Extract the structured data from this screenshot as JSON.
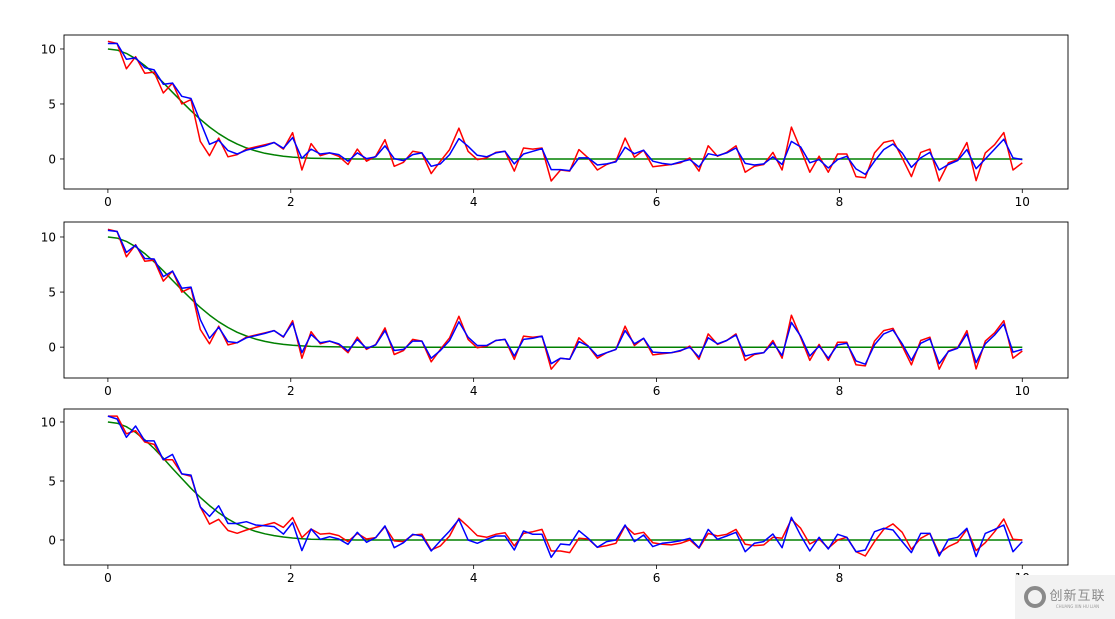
{
  "watermark": {
    "text_cn": "创新互联",
    "text_en": "CHUANG XIN HU LIAN"
  },
  "colors": {
    "red": "#ff0000",
    "blue": "#0000ff",
    "green": "#008000"
  },
  "chart_data": [
    {
      "type": "line",
      "x_range": {
        "start": 0,
        "end": 10,
        "count": 100
      },
      "xlim": [
        -0.48,
        10.5
      ],
      "ylim": [
        -2.73,
        11.27
      ],
      "xticks": [
        0,
        2,
        4,
        6,
        8,
        10
      ],
      "yticks": [
        0,
        5,
        10
      ],
      "grid": false,
      "series": [
        {
          "color": "#008000",
          "values": [
            10,
            9.9,
            9.6,
            9.12,
            8.49,
            7.75,
            6.93,
            6.06,
            5.21,
            4.38,
            3.61,
            2.91,
            2.3,
            1.78,
            1.35,
            1.01,
            0.73,
            0.52,
            0.37,
            0.25,
            0.17,
            0.11,
            0.07,
            0.05,
            0.03,
            0.02,
            0.01,
            0,
            0,
            0,
            0,
            0,
            0,
            0,
            0,
            0,
            0,
            0,
            0,
            0,
            0,
            0,
            0,
            0,
            0,
            0,
            0,
            0,
            0,
            0,
            0,
            0,
            0,
            0,
            0,
            0,
            0,
            0,
            0,
            0,
            0,
            0,
            0,
            0,
            0,
            0,
            0,
            0,
            0,
            0,
            0,
            0,
            0,
            0,
            0,
            0,
            0,
            0,
            0,
            0,
            0,
            0,
            0,
            0,
            0,
            0,
            0,
            0,
            0,
            0,
            0,
            0,
            0,
            0,
            0,
            0,
            0,
            0,
            0,
            0
          ]
        },
        {
          "color": "#ff0000",
          "values": [
            10.7,
            10.5,
            8.2,
            9.3,
            7.8,
            7.9,
            6.0,
            6.9,
            5.0,
            5.4,
            1.6,
            0.3,
            1.9,
            0.2,
            0.4,
            0.9,
            1.1,
            1.3,
            1.5,
            0.9,
            2.4,
            -1.0,
            1.4,
            0.3,
            0.55,
            0.24,
            -0.5,
            0.9,
            -0.2,
            0.24,
            1.75,
            -0.67,
            -0.3,
            0.7,
            0.55,
            -1.33,
            -0.2,
            0.85,
            2.8,
            0.7,
            -0.06,
            0.1,
            0.6,
            0.7,
            -1.1,
            1.0,
            0.9,
            1.0,
            -2.0,
            -1.0,
            -1.1,
            0.85,
            0.1,
            -1.0,
            -0.5,
            -0.2,
            1.9,
            0.15,
            0.8,
            -0.7,
            -0.6,
            -0.5,
            -0.35,
            0.1,
            -1.1,
            1.2,
            0.25,
            0.6,
            1.2,
            -1.2,
            -0.67,
            -0.5,
            0.6,
            -1.0,
            2.9,
            0.9,
            -1.2,
            0.25,
            -1.2,
            0.45,
            0.45,
            -1.6,
            -1.7,
            0.55,
            1.5,
            1.7,
            0.1,
            -1.6,
            0.6,
            0.9,
            -2.0,
            -0.35,
            -0.06,
            1.5,
            -1.97,
            0.55,
            1.3,
            2.4,
            -1.0,
            -0.35
          ]
        },
        {
          "color": "#0000ff",
          "values": [
            10.5,
            10.5,
            9.06,
            9.2,
            8.3,
            8.1,
            6.8,
            6.9,
            5.7,
            5.5,
            3.4,
            1.33,
            1.7,
            0.76,
            0.45,
            0.8,
            1.0,
            1.2,
            1.5,
            0.97,
            1.94,
            0.06,
            0.9,
            0.45,
            0.55,
            0.4,
            -0.2,
            0.55,
            0.03,
            0.2,
            1.2,
            0.03,
            -0.15,
            0.4,
            0.55,
            -0.67,
            -0.45,
            0.4,
            1.85,
            1.15,
            0.33,
            0.2,
            0.55,
            0.7,
            -0.45,
            0.45,
            0.7,
            0.94,
            -0.97,
            -0.97,
            -1.06,
            0.1,
            0.1,
            -0.55,
            -0.45,
            -0.27,
            1.06,
            0.48,
            0.8,
            -0.2,
            -0.4,
            -0.5,
            -0.27,
            -0.06,
            -0.73,
            0.48,
            0.3,
            0.55,
            1.0,
            -0.4,
            -0.55,
            -0.45,
            0.2,
            -0.5,
            1.6,
            1.1,
            -0.35,
            -0.06,
            -0.82,
            -0.06,
            0.24,
            -0.9,
            -1.4,
            -0.2,
            0.85,
            1.36,
            0.55,
            -0.76,
            0.1,
            0.6,
            -1.0,
            -0.5,
            -0.15,
            0.85,
            -0.88,
            0.0,
            0.9,
            1.8,
            0.1,
            -0.06
          ]
        }
      ]
    },
    {
      "type": "line",
      "x_range": {
        "start": 0,
        "end": 10,
        "count": 100
      },
      "xlim": [
        -0.48,
        10.5
      ],
      "ylim": [
        -2.8,
        11.36
      ],
      "xticks": [
        0,
        2,
        4,
        6,
        8,
        10
      ],
      "yticks": [
        0,
        5,
        10
      ],
      "grid": false,
      "series": [
        {
          "color": "#008000",
          "values": [
            10,
            9.9,
            9.6,
            9.12,
            8.49,
            7.75,
            6.93,
            6.06,
            5.21,
            4.38,
            3.61,
            2.91,
            2.3,
            1.78,
            1.35,
            1.01,
            0.73,
            0.52,
            0.37,
            0.25,
            0.17,
            0.11,
            0.07,
            0.05,
            0.03,
            0.02,
            0.01,
            0,
            0,
            0,
            0,
            0,
            0,
            0,
            0,
            0,
            0,
            0,
            0,
            0,
            0,
            0,
            0,
            0,
            0,
            0,
            0,
            0,
            0,
            0,
            0,
            0,
            0,
            0,
            0,
            0,
            0,
            0,
            0,
            0,
            0,
            0,
            0,
            0,
            0,
            0,
            0,
            0,
            0,
            0,
            0,
            0,
            0,
            0,
            0,
            0,
            0,
            0,
            0,
            0,
            0,
            0,
            0,
            0,
            0,
            0,
            0,
            0,
            0,
            0,
            0,
            0,
            0,
            0,
            0,
            0,
            0,
            0,
            0,
            0
          ]
        },
        {
          "color": "#ff0000",
          "values": [
            10.7,
            10.5,
            8.2,
            9.3,
            7.8,
            7.9,
            6.0,
            6.9,
            5.0,
            5.4,
            1.6,
            0.3,
            1.9,
            0.2,
            0.4,
            0.9,
            1.1,
            1.3,
            1.5,
            0.9,
            2.4,
            -1.0,
            1.4,
            0.3,
            0.55,
            0.24,
            -0.5,
            0.9,
            -0.2,
            0.24,
            1.75,
            -0.67,
            -0.3,
            0.7,
            0.55,
            -1.33,
            -0.2,
            0.85,
            2.8,
            0.7,
            -0.06,
            0.1,
            0.6,
            0.7,
            -1.1,
            1.0,
            0.9,
            1.0,
            -2.0,
            -1.0,
            -1.1,
            0.85,
            0.1,
            -1.0,
            -0.5,
            -0.2,
            1.9,
            0.15,
            0.8,
            -0.7,
            -0.6,
            -0.5,
            -0.35,
            0.1,
            -1.1,
            1.2,
            0.25,
            0.6,
            1.2,
            -1.2,
            -0.67,
            -0.5,
            0.6,
            -1.0,
            2.9,
            0.9,
            -1.2,
            0.25,
            -1.2,
            0.45,
            0.45,
            -1.6,
            -1.7,
            0.55,
            1.5,
            1.7,
            0.1,
            -1.6,
            0.6,
            0.9,
            -2.0,
            -0.35,
            -0.06,
            1.5,
            -1.97,
            0.55,
            1.3,
            2.4,
            -1.0,
            -0.35
          ]
        },
        {
          "color": "#0000ff",
          "values": [
            10.6,
            10.5,
            8.6,
            9.25,
            8.05,
            8.0,
            6.4,
            6.9,
            5.35,
            5.45,
            2.5,
            0.8,
            1.8,
            0.5,
            0.4,
            0.85,
            1.05,
            1.25,
            1.5,
            0.95,
            2.2,
            -0.5,
            1.15,
            0.4,
            0.55,
            0.3,
            -0.35,
            0.7,
            -0.1,
            0.2,
            1.5,
            -0.3,
            -0.2,
            0.55,
            0.55,
            -1.0,
            -0.3,
            0.6,
            2.3,
            0.9,
            0.15,
            0.15,
            0.6,
            0.7,
            -0.8,
            0.7,
            0.8,
            1.0,
            -1.5,
            -1.0,
            -1.1,
            0.5,
            0.1,
            -0.8,
            -0.5,
            -0.2,
            1.5,
            0.3,
            0.8,
            -0.45,
            -0.5,
            -0.5,
            -0.3,
            0.0,
            -0.9,
            0.85,
            0.3,
            0.6,
            1.1,
            -0.8,
            -0.6,
            -0.5,
            0.4,
            -0.75,
            2.25,
            1.0,
            -0.8,
            0.1,
            -1.0,
            0.2,
            0.35,
            -1.25,
            -1.55,
            0.2,
            1.2,
            1.55,
            0.3,
            -1.2,
            0.35,
            0.75,
            -1.5,
            -0.4,
            -0.1,
            1.2,
            -1.4,
            0.3,
            1.1,
            2.1,
            -0.45,
            -0.2
          ]
        }
      ]
    },
    {
      "type": "line",
      "x_range": {
        "start": 0,
        "end": 10,
        "count": 100
      },
      "xlim": [
        -0.48,
        10.5
      ],
      "ylim": [
        -2.12,
        11.1
      ],
      "xticks": [
        0,
        2,
        4,
        6,
        8,
        10
      ],
      "yticks": [
        0,
        5,
        10
      ],
      "grid": false,
      "series": [
        {
          "color": "#008000",
          "values": [
            10,
            9.9,
            9.6,
            9.12,
            8.49,
            7.75,
            6.93,
            6.06,
            5.21,
            4.38,
            3.61,
            2.91,
            2.3,
            1.78,
            1.35,
            1.01,
            0.73,
            0.52,
            0.37,
            0.25,
            0.17,
            0.11,
            0.07,
            0.05,
            0.03,
            0.02,
            0.01,
            0,
            0,
            0,
            0,
            0,
            0,
            0,
            0,
            0,
            0,
            0,
            0,
            0,
            0,
            0,
            0,
            0,
            0,
            0,
            0,
            0,
            0,
            0,
            0,
            0,
            0,
            0,
            0,
            0,
            0,
            0,
            0,
            0,
            0,
            0,
            0,
            0,
            0,
            0,
            0,
            0,
            0,
            0,
            0,
            0,
            0,
            0,
            0,
            0,
            0,
            0,
            0,
            0,
            0,
            0,
            0,
            0,
            0,
            0,
            0,
            0,
            0,
            0,
            0,
            0,
            0,
            0,
            0,
            0,
            0,
            0,
            0,
            0
          ]
        },
        {
          "color": "#ff0000",
          "values": [
            10.5,
            10.5,
            9.0,
            9.26,
            8.3,
            8.1,
            6.8,
            6.8,
            5.6,
            5.4,
            2.8,
            1.35,
            1.75,
            0.8,
            0.57,
            0.85,
            1.07,
            1.27,
            1.47,
            1.07,
            1.9,
            0.2,
            0.93,
            0.5,
            0.56,
            0.37,
            -0.14,
            0.56,
            0.08,
            0.2,
            1.13,
            -0.08,
            -0.14,
            0.42,
            0.48,
            -0.85,
            -0.5,
            0.34,
            1.84,
            1.13,
            0.37,
            0.23,
            0.48,
            0.62,
            -0.5,
            0.56,
            0.7,
            0.9,
            -0.93,
            -0.93,
            -1.07,
            0.14,
            0.08,
            -0.62,
            -0.48,
            -0.28,
            1.19,
            0.48,
            0.65,
            -0.23,
            -0.37,
            -0.42,
            -0.28,
            0.0,
            -0.7,
            0.56,
            0.34,
            0.48,
            0.9,
            -0.37,
            -0.48,
            -0.42,
            0.23,
            0.14,
            1.75,
            1.0,
            -0.34,
            0.08,
            -0.7,
            0.0,
            0.23,
            -0.99,
            -1.36,
            -0.14,
            0.9,
            1.36,
            0.65,
            -0.79,
            0.14,
            0.56,
            -1.13,
            -0.56,
            -0.2,
            0.9,
            -0.9,
            -0.23,
            0.7,
            1.78,
            0.06,
            0.0
          ]
        },
        {
          "color": "#0000ff",
          "values": [
            10.5,
            10.25,
            8.7,
            9.66,
            8.4,
            8.4,
            6.8,
            7.25,
            5.6,
            5.5,
            2.8,
            2.0,
            2.9,
            1.4,
            1.4,
            1.55,
            1.27,
            1.2,
            1.13,
            0.5,
            1.47,
            -0.9,
            0.93,
            0.05,
            0.28,
            0.08,
            -0.37,
            0.65,
            -0.2,
            0.2,
            1.19,
            -0.65,
            -0.23,
            0.48,
            0.34,
            -0.93,
            -0.06,
            0.76,
            1.75,
            0.0,
            -0.28,
            0.06,
            0.34,
            0.34,
            -0.85,
            0.76,
            0.48,
            0.48,
            -1.47,
            -0.34,
            -0.42,
            0.79,
            0.14,
            -0.62,
            -0.14,
            0.0,
            1.27,
            -0.14,
            0.42,
            -0.56,
            -0.28,
            -0.2,
            -0.06,
            0.14,
            -0.65,
            0.9,
            0.06,
            0.34,
            0.65,
            -0.99,
            -0.28,
            -0.14,
            0.51,
            -0.65,
            1.92,
            0.4,
            -0.93,
            0.23,
            -0.76,
            0.48,
            0.23,
            -0.99,
            -0.85,
            0.7,
            0.99,
            0.85,
            -0.14,
            -1.07,
            0.56,
            0.56,
            -1.36,
            0.06,
            0.23,
            0.99,
            -1.41,
            0.56,
            0.9,
            1.27,
            -0.99,
            -0.14
          ]
        }
      ]
    }
  ]
}
